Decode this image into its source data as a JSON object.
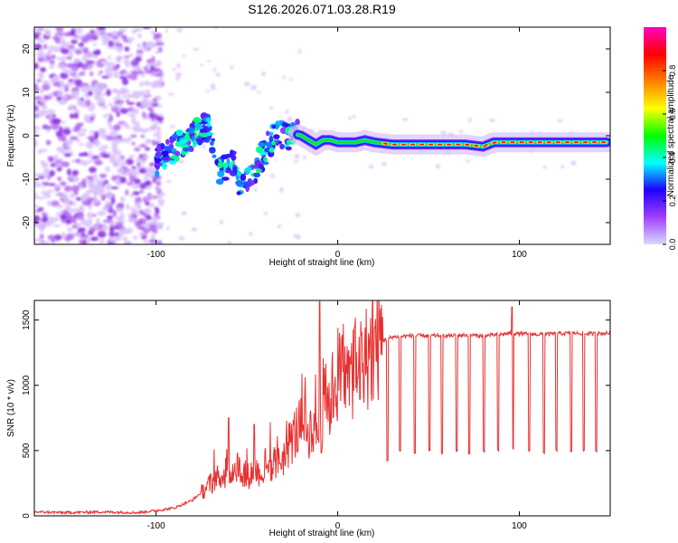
{
  "figure": {
    "title": "S126.2026.071.03.28.R19"
  },
  "chart_data": [
    {
      "type": "heatmap",
      "xlabel": "Height of straight line (km)",
      "ylabel": "Frequency (Hz)",
      "xlim": [
        -167,
        150
      ],
      "ylim": [
        -25,
        25
      ],
      "x_ticks": [
        -100,
        0,
        100
      ],
      "y_ticks": [
        -20,
        -10,
        0,
        10,
        20
      ],
      "colorbar": {
        "label": "Normalized spectral amplitude",
        "range": [
          0,
          1
        ],
        "ticks": [
          0.0,
          0.2,
          0.4,
          0.6,
          0.8
        ],
        "tick_labels": [
          "0.0",
          "0.2",
          "0.4",
          "0.6",
          "0.8"
        ],
        "colors": [
          "#d8d8ff",
          "#a040ff",
          "#2000ff",
          "#00ffff",
          "#00ff00",
          "#ffff00",
          "#ff8000",
          "#ff0000",
          "#ff00c0"
        ]
      },
      "ridge": {
        "x": [
          -100,
          -95,
          -90,
          -85,
          -80,
          -75,
          -70,
          -66,
          -62,
          -58,
          -54,
          -50,
          -46,
          -42,
          -38,
          -34,
          -30,
          -27,
          -24,
          -20,
          -16,
          -12,
          -8,
          -4,
          0,
          5,
          10,
          15,
          20,
          30,
          40,
          50,
          60,
          70,
          80,
          86,
          90,
          95,
          100,
          110,
          120,
          130,
          140,
          148
        ],
        "y": [
          -6,
          -4.5,
          -3,
          -1.5,
          0,
          1.5,
          2,
          -9,
          -7,
          -5,
          -13,
          -11,
          -8,
          -5,
          -2,
          0,
          0.5,
          0,
          0.5,
          0,
          -1,
          -2,
          -1,
          -1,
          -1.5,
          -1.5,
          -1.5,
          -1,
          -1.5,
          -2,
          -2,
          -2,
          -2,
          -2,
          -2.5,
          -1.5,
          -1.5,
          -1.5,
          -1.5,
          -1.5,
          -1.5,
          -1.5,
          -1.5,
          -1.5
        ]
      }
    },
    {
      "type": "line",
      "xlabel": "Height of straight line (km)",
      "ylabel": "SNR (10 * v/v)",
      "xlim": [
        -167,
        150
      ],
      "ylim": [
        0,
        1650
      ],
      "x_ticks": [
        -100,
        0,
        100
      ],
      "y_ticks": [
        0,
        500,
        1000,
        1500
      ],
      "series": [
        {
          "color": "#e83030",
          "x": [
            -167,
            -150,
            -130,
            -110,
            -100,
            -90,
            -85,
            -80,
            -75,
            -70,
            -65,
            -60,
            -55,
            -50,
            -45,
            -40,
            -35,
            -30,
            -25,
            -20,
            -15,
            -12,
            -10,
            -8,
            -5,
            -2,
            0,
            3,
            6,
            9,
            12,
            15,
            18,
            20,
            23,
            26,
            30,
            40,
            50,
            60,
            70,
            80,
            90,
            95,
            100,
            110,
            120,
            130,
            140,
            150
          ],
          "values": [
            30,
            25,
            30,
            25,
            40,
            60,
            90,
            120,
            180,
            250,
            300,
            320,
            380,
            300,
            350,
            300,
            380,
            450,
            600,
            700,
            650,
            750,
            500,
            900,
            850,
            1000,
            1050,
            1100,
            1050,
            1150,
            1100,
            1200,
            1250,
            1300,
            1330,
            1350,
            1370,
            1380,
            1380,
            1380,
            1385,
            1380,
            1390,
            1400,
            1395,
            1390,
            1395,
            1400,
            1395,
            1400
          ],
          "drops_x": [
            27,
            34,
            42,
            50,
            57,
            65,
            72,
            80,
            88,
            96,
            105,
            113,
            120,
            128,
            135,
            142
          ],
          "drops_to": [
            420,
            500,
            480,
            500,
            480,
            500,
            480,
            490,
            500,
            520,
            500,
            480,
            500,
            490,
            500,
            500
          ],
          "spikes": [
            {
              "x": -60,
              "value": 750
            },
            {
              "x": -46,
              "value": 700
            },
            {
              "x": -10,
              "value": 1640
            },
            {
              "x": 96,
              "value": 1600
            }
          ]
        }
      ]
    }
  ]
}
